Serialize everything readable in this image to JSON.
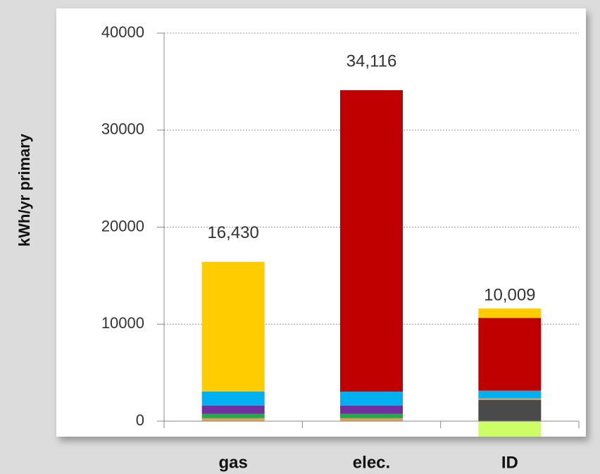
{
  "chart_data": {
    "type": "stacked_bar",
    "y_label": "kWh/yr primary",
    "categories": [
      "gas",
      "elec.",
      "ID"
    ],
    "series": [
      {
        "color": "#ccff66",
        "values": [
          0,
          0,
          -1600
        ]
      },
      {
        "color": "#4a4a4a",
        "values": [
          0,
          0,
          2200
        ]
      },
      {
        "color": "#e0a060",
        "values": [
          300,
          300,
          150
        ]
      },
      {
        "color": "#22aa44",
        "values": [
          450,
          450,
          0
        ]
      },
      {
        "color": "#7030a0",
        "values": [
          850,
          850,
          0
        ]
      },
      {
        "color": "#00b0f0",
        "values": [
          1450,
          1450,
          800
        ]
      },
      {
        "color": "#c00000",
        "values": [
          0,
          31066,
          7500
        ]
      },
      {
        "color": "#ffcc00",
        "values": [
          13380,
          0,
          959
        ]
      }
    ],
    "totals": [
      16430,
      34116,
      10009
    ],
    "total_labels": [
      "16,430",
      "34,116",
      "10,009"
    ],
    "ylim": [
      0,
      40000
    ],
    "yticks": [
      0,
      10000,
      20000,
      30000,
      40000
    ],
    "grid": true
  }
}
